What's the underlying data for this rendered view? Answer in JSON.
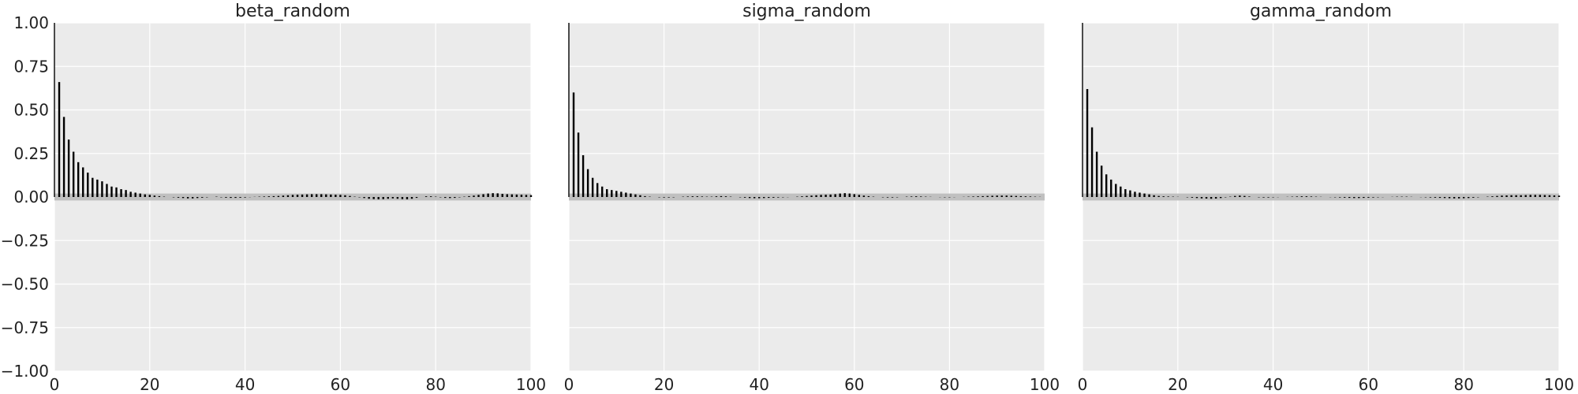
{
  "chart_data": [
    {
      "type": "bar",
      "title": "beta_random",
      "xlabel": "",
      "ylabel": "",
      "xlim": [
        0,
        100
      ],
      "ylim": [
        -1,
        1
      ],
      "xticks": [
        0,
        20,
        40,
        60,
        80,
        100
      ],
      "yticks": [
        -1.0,
        -0.75,
        -0.5,
        -0.25,
        0.0,
        0.25,
        0.5,
        0.75,
        1.0
      ],
      "ytick_labels": [
        "−1.00",
        "−0.75",
        "−0.50",
        "−0.25",
        "0.00",
        "0.25",
        "0.50",
        "0.75",
        "1.00"
      ],
      "show_ytick_labels": true,
      "grid": true,
      "confidence_band": [
        -0.02,
        0.02
      ],
      "series": [
        {
          "x": [
            0,
            1,
            2,
            3,
            4,
            5,
            6,
            7,
            8,
            9,
            10,
            11,
            12,
            13,
            14,
            15,
            16,
            17,
            18,
            19,
            20,
            21,
            22,
            23,
            24,
            25,
            26,
            27,
            28,
            29,
            30,
            31,
            32,
            33,
            34,
            35,
            36,
            37,
            38,
            39,
            40,
            41,
            42,
            43,
            44,
            45,
            46,
            47,
            48,
            49,
            50,
            51,
            52,
            53,
            54,
            55,
            56,
            57,
            58,
            59,
            60,
            61,
            62,
            63,
            64,
            65,
            66,
            67,
            68,
            69,
            70,
            71,
            72,
            73,
            74,
            75,
            76,
            77,
            78,
            79,
            80,
            81,
            82,
            83,
            84,
            85,
            86,
            87,
            88,
            89,
            90,
            91,
            92,
            93,
            94,
            95,
            96,
            97,
            98,
            99,
            100
          ],
          "values": [
            1.0,
            0.66,
            0.46,
            0.33,
            0.26,
            0.2,
            0.17,
            0.14,
            0.11,
            0.1,
            0.09,
            0.075,
            0.06,
            0.055,
            0.045,
            0.04,
            0.03,
            0.025,
            0.02,
            0.015,
            0.012,
            0.008,
            0.005,
            0.002,
            0.0,
            -0.002,
            -0.004,
            -0.006,
            -0.008,
            -0.008,
            -0.006,
            -0.004,
            -0.002,
            0.0,
            0.002,
            -0.002,
            -0.004,
            -0.005,
            -0.005,
            -0.004,
            -0.003,
            -0.001,
            0.001,
            0.002,
            0.003,
            0.004,
            0.005,
            0.006,
            0.008,
            0.01,
            0.012,
            0.013,
            0.014,
            0.015,
            0.016,
            0.016,
            0.016,
            0.015,
            0.014,
            0.013,
            0.012,
            0.01,
            0.006,
            0.002,
            -0.002,
            -0.006,
            -0.01,
            -0.012,
            -0.013,
            -0.012,
            -0.01,
            -0.008,
            -0.01,
            -0.012,
            -0.013,
            -0.01,
            -0.005,
            0.0,
            0.004,
            0.004,
            0.002,
            -0.002,
            -0.005,
            -0.006,
            -0.005,
            -0.002,
            0.002,
            0.005,
            0.008,
            0.012,
            0.016,
            0.02,
            0.022,
            0.021,
            0.018,
            0.016,
            0.015,
            0.014,
            0.013,
            0.012,
            0.011
          ]
        }
      ]
    },
    {
      "type": "bar",
      "title": "sigma_random",
      "xlabel": "",
      "ylabel": "",
      "xlim": [
        0,
        100
      ],
      "ylim": [
        -1,
        1
      ],
      "xticks": [
        0,
        20,
        40,
        60,
        80,
        100
      ],
      "yticks": [
        -1.0,
        -0.75,
        -0.5,
        -0.25,
        0.0,
        0.25,
        0.5,
        0.75,
        1.0
      ],
      "ytick_labels": [
        "−1.00",
        "−0.75",
        "−0.50",
        "−0.25",
        "0.00",
        "0.25",
        "0.50",
        "0.75",
        "1.00"
      ],
      "show_ytick_labels": false,
      "grid": true,
      "confidence_band": [
        -0.02,
        0.02
      ],
      "series": [
        {
          "x": [
            0,
            1,
            2,
            3,
            4,
            5,
            6,
            7,
            8,
            9,
            10,
            11,
            12,
            13,
            14,
            15,
            16,
            17,
            18,
            19,
            20,
            21,
            22,
            23,
            24,
            25,
            26,
            27,
            28,
            29,
            30,
            31,
            32,
            33,
            34,
            35,
            36,
            37,
            38,
            39,
            40,
            41,
            42,
            43,
            44,
            45,
            46,
            47,
            48,
            49,
            50,
            51,
            52,
            53,
            54,
            55,
            56,
            57,
            58,
            59,
            60,
            61,
            62,
            63,
            64,
            65,
            66,
            67,
            68,
            69,
            70,
            71,
            72,
            73,
            74,
            75,
            76,
            77,
            78,
            79,
            80,
            81,
            82,
            83,
            84,
            85,
            86,
            87,
            88,
            89,
            90,
            91,
            92,
            93,
            94,
            95,
            96,
            97,
            98,
            99,
            100
          ],
          "values": [
            1.0,
            0.6,
            0.37,
            0.24,
            0.16,
            0.11,
            0.08,
            0.06,
            0.045,
            0.04,
            0.035,
            0.03,
            0.025,
            0.02,
            0.015,
            0.01,
            0.005,
            0.002,
            0.0,
            -0.002,
            -0.003,
            -0.003,
            -0.002,
            0.0,
            0.002,
            0.003,
            0.004,
            0.004,
            0.003,
            0.002,
            0.002,
            0.004,
            0.005,
            0.004,
            0.002,
            0.0,
            -0.002,
            -0.004,
            -0.006,
            -0.007,
            -0.007,
            -0.006,
            -0.005,
            -0.004,
            -0.003,
            -0.002,
            -0.001,
            0.0,
            0.002,
            0.004,
            0.006,
            0.008,
            0.01,
            0.012,
            0.013,
            0.014,
            0.016,
            0.02,
            0.022,
            0.02,
            0.016,
            0.012,
            0.008,
            0.005,
            0.002,
            0.0,
            -0.002,
            -0.003,
            -0.003,
            -0.002,
            0.0,
            0.002,
            0.003,
            0.004,
            0.003,
            0.002,
            0.001,
            0.0,
            -0.001,
            -0.002,
            -0.002,
            -0.001,
            0.0,
            0.001,
            0.002,
            0.003,
            0.004,
            0.005,
            0.006,
            0.007,
            0.008,
            0.008,
            0.008,
            0.007,
            0.006,
            0.005,
            0.004,
            0.003,
            0.002,
            0.001,
            0.0
          ]
        }
      ]
    },
    {
      "type": "bar",
      "title": "gamma_random",
      "xlabel": "",
      "ylabel": "",
      "xlim": [
        0,
        100
      ],
      "ylim": [
        -1,
        1
      ],
      "xticks": [
        0,
        20,
        40,
        60,
        80,
        100
      ],
      "yticks": [
        -1.0,
        -0.75,
        -0.5,
        -0.25,
        0.0,
        0.25,
        0.5,
        0.75,
        1.0
      ],
      "ytick_labels": [
        "−1.00",
        "−0.75",
        "−0.50",
        "−0.25",
        "0.00",
        "0.25",
        "0.50",
        "0.75",
        "1.00"
      ],
      "show_ytick_labels": false,
      "grid": true,
      "confidence_band": [
        -0.02,
        0.02
      ],
      "series": [
        {
          "x": [
            0,
            1,
            2,
            3,
            4,
            5,
            6,
            7,
            8,
            9,
            10,
            11,
            12,
            13,
            14,
            15,
            16,
            17,
            18,
            19,
            20,
            21,
            22,
            23,
            24,
            25,
            26,
            27,
            28,
            29,
            30,
            31,
            32,
            33,
            34,
            35,
            36,
            37,
            38,
            39,
            40,
            41,
            42,
            43,
            44,
            45,
            46,
            47,
            48,
            49,
            50,
            51,
            52,
            53,
            54,
            55,
            56,
            57,
            58,
            59,
            60,
            61,
            62,
            63,
            64,
            65,
            66,
            67,
            68,
            69,
            70,
            71,
            72,
            73,
            74,
            75,
            76,
            77,
            78,
            79,
            80,
            81,
            82,
            83,
            84,
            85,
            86,
            87,
            88,
            89,
            90,
            91,
            92,
            93,
            94,
            95,
            96,
            97,
            98,
            99,
            100
          ],
          "values": [
            1.0,
            0.62,
            0.4,
            0.26,
            0.18,
            0.13,
            0.1,
            0.075,
            0.06,
            0.045,
            0.038,
            0.03,
            0.025,
            0.02,
            0.015,
            0.01,
            0.006,
            0.004,
            0.003,
            0.002,
            0.001,
            0.0,
            -0.002,
            -0.004,
            -0.006,
            -0.008,
            -0.009,
            -0.01,
            -0.009,
            -0.006,
            -0.002,
            0.002,
            0.006,
            0.008,
            0.006,
            0.003,
            0.0,
            -0.002,
            -0.003,
            -0.003,
            -0.002,
            -0.001,
            0.0,
            0.001,
            0.002,
            0.003,
            0.004,
            0.004,
            0.003,
            0.002,
            0.001,
            0.0,
            -0.001,
            -0.002,
            -0.003,
            -0.004,
            -0.005,
            -0.006,
            -0.006,
            -0.005,
            -0.004,
            -0.003,
            -0.002,
            -0.001,
            0.0,
            0.001,
            0.002,
            0.002,
            0.002,
            0.001,
            0.0,
            -0.001,
            -0.002,
            -0.003,
            -0.004,
            -0.005,
            -0.006,
            -0.007,
            -0.008,
            -0.008,
            -0.007,
            -0.006,
            -0.004,
            -0.002,
            0.0,
            0.002,
            0.004,
            0.006,
            0.008,
            0.009,
            0.01,
            0.01,
            0.01,
            0.011,
            0.012,
            0.012,
            0.012,
            0.011,
            0.01,
            0.009,
            0.008
          ]
        }
      ]
    }
  ]
}
